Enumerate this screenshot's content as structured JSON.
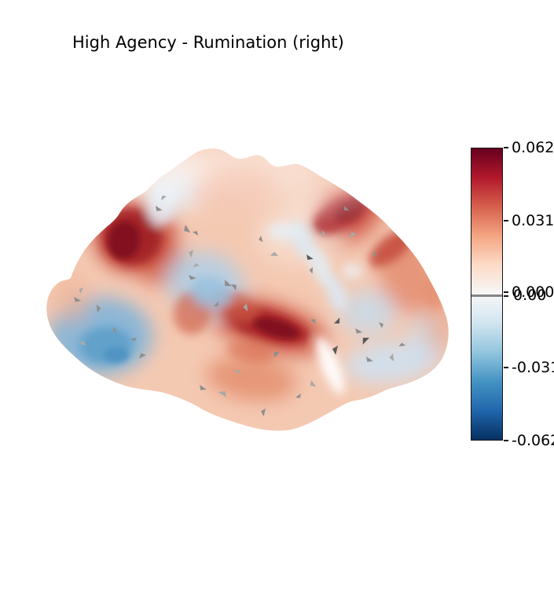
{
  "chart_data": {
    "type": "heatmap",
    "subtype": "brain_surface_stat_map",
    "title": "High Agency - Rumination (right)",
    "hemisphere": "right",
    "view": "lateral",
    "colormap": "RdBu_r",
    "background": "#ffffff",
    "colorbar": {
      "orientation": "vertical",
      "position": "right",
      "vmin": -0.062,
      "vmax": 0.062,
      "ticks": [
        {
          "value": 0.062,
          "label": "0.062"
        },
        {
          "value": 0.031,
          "label": "0.031"
        },
        {
          "value": 0.0,
          "label": "0.000"
        },
        {
          "value": -0.031,
          "label": "-0.031"
        },
        {
          "value": -0.062,
          "label": "-0.062"
        }
      ],
      "threshold_tick_label": "0.00",
      "threshold_line_color": "#848484",
      "gradient_stops": [
        "#67001f",
        "#b2182b",
        "#d6604d",
        "#f4a582",
        "#fddbc7",
        "#f7f7f7",
        "#d1e5f0",
        "#92c5de",
        "#4393c3",
        "#2166ac",
        "#053061"
      ]
    },
    "regions_summary": [
      {
        "location": "superior parietal / upper-left of view",
        "sign": "positive",
        "approx_peak": 0.06,
        "color": "dark red"
      },
      {
        "location": "mid temporal-sylvian / center-bottom",
        "sign": "positive",
        "approx_peak": 0.06,
        "color": "dark red"
      },
      {
        "location": "precentral / upper-right of view",
        "sign": "positive",
        "approx_peak": 0.055,
        "color": "dark red"
      },
      {
        "location": "occipital pole / lower-left of view",
        "sign": "negative",
        "approx_peak": -0.035,
        "color": "blue"
      },
      {
        "location": "supramarginal / center",
        "sign": "negative",
        "approx_peak": -0.02,
        "color": "light blue"
      },
      {
        "location": "inferior frontal / lower-right of view",
        "sign": "negative",
        "approx_peak": -0.015,
        "color": "pale blue"
      },
      {
        "location": "remaining cortex",
        "sign": "positive",
        "approx_peak": 0.02,
        "color": "salmon"
      }
    ]
  }
}
